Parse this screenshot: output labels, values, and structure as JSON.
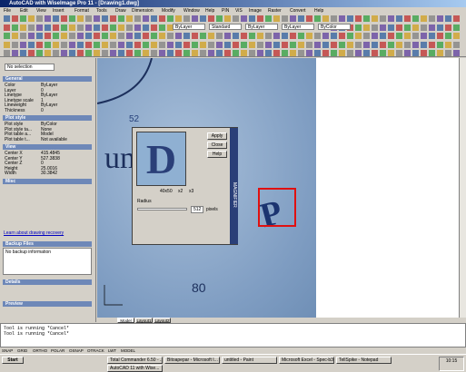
{
  "window": {
    "title": "AutoCAD with WiseImage Pro 11 - [Drawing1.dwg]",
    "menu": [
      "File",
      "Edit",
      "View",
      "Insert",
      "Format",
      "Tools",
      "Draw",
      "Dimension",
      "Modify",
      "Window",
      "Help",
      "PIN",
      "ViS",
      "Image",
      "Raster",
      "Convert",
      "Help"
    ],
    "toolbar_fields": [
      "ByLayer",
      "Standard",
      "ByLayer",
      "ByLayer",
      "ByColor"
    ]
  },
  "properties": {
    "selection": "No selection",
    "sections": [
      {
        "title": "General",
        "rows": [
          [
            "Color",
            "ByLayer"
          ],
          [
            "Layer",
            "0"
          ],
          [
            "Linetype",
            "ByLayer"
          ],
          [
            "Linetype scale",
            "1"
          ],
          [
            "Lineweight",
            "ByLayer"
          ],
          [
            "Thickness",
            "0"
          ]
        ]
      },
      {
        "title": "Plot style",
        "rows": [
          [
            "Plot style",
            "ByColor"
          ],
          [
            "Plot style ta...",
            "None"
          ],
          [
            "Plot table a...",
            "Model"
          ],
          [
            "Plot table t...",
            "Not available"
          ]
        ]
      },
      {
        "title": "View",
        "rows": [
          [
            "Center X",
            "415.4845"
          ],
          [
            "Center Y",
            "527.3838"
          ],
          [
            "Center Z",
            "0"
          ],
          [
            "Height",
            "25.0016"
          ],
          [
            "Width",
            "30.3842"
          ]
        ]
      },
      {
        "title": "Misc",
        "rows": []
      }
    ]
  },
  "recovery": {
    "link": "Learn about drawing recovery",
    "backup_title": "Backup Files",
    "backup_text": "No backup information",
    "details": "Details",
    "preview": "Preview"
  },
  "raster_text": [
    "um",
    "52",
    "80"
  ],
  "magnifier": {
    "buttons": [
      "Apply",
      "Close",
      "Help"
    ],
    "zoom": [
      "40x50",
      "x2",
      "x3"
    ],
    "radius_label": "Radius",
    "radius_value": "512",
    "unit": "pixels",
    "side_title": "MAGNIFIER"
  },
  "layout_tabs": [
    "Model",
    "Layout1",
    "Layout2"
  ],
  "command_lines": [
    "Tool is running  *Cancel*",
    "Tool is running  *Cancel*"
  ],
  "status": [
    "SNAP",
    "GRID",
    "ORTHO",
    "POLAR",
    "OSNAP",
    "OTRACK",
    "LWT",
    "MODEL"
  ],
  "taskbar": {
    "start": "Start",
    "tasks": [
      "Total Commander 6.50 - ...",
      "Bitoapepar - Microsoft I...",
      "untitled - Paint",
      "Microsoft Excel - Spec-b3...",
      "TellSpike - Notepad",
      "AutoCAD 11 with Wise..."
    ],
    "clock": "10:15"
  }
}
